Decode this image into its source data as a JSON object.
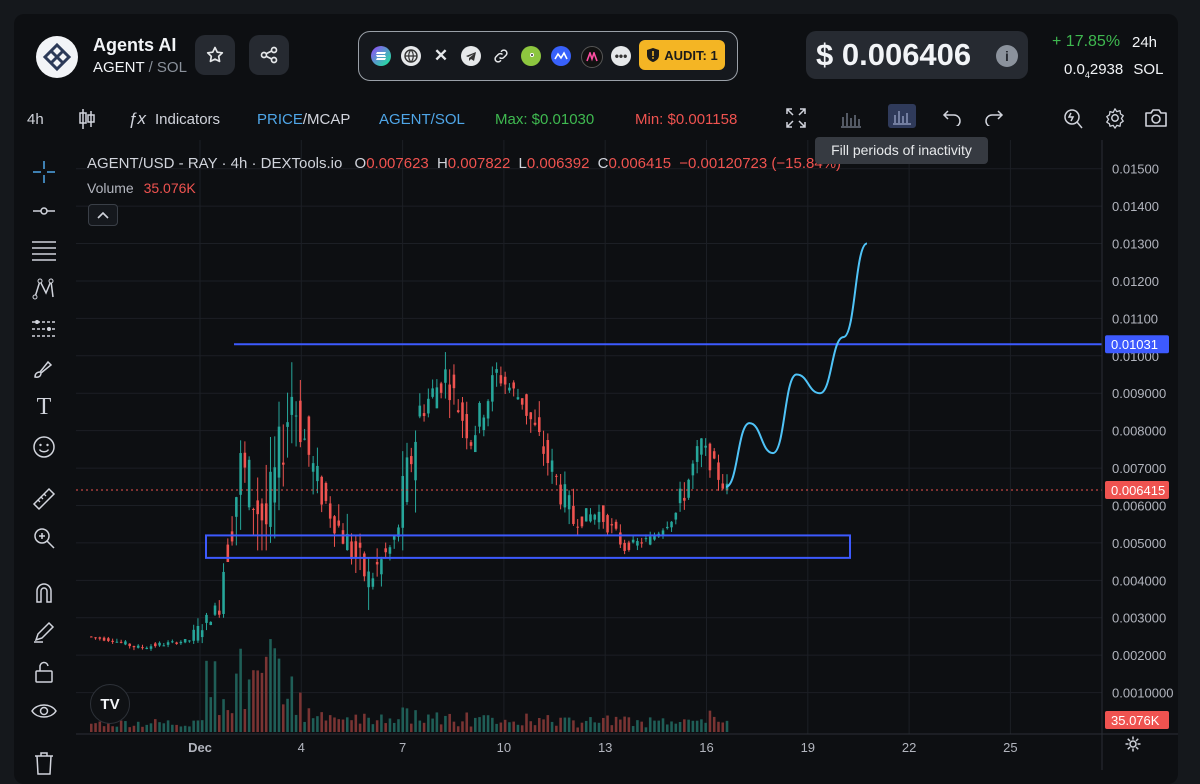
{
  "token": {
    "name": "Agents AI",
    "symbol": "AGENT",
    "separator": "/",
    "quote": "SOL"
  },
  "social": {
    "icons": [
      "solana-icon",
      "website-icon",
      "x-icon",
      "telegram-icon",
      "link-icon",
      "coingecko-icon",
      "coinmarketcap-icon",
      "dextools-icon",
      "more-icon"
    ],
    "audit_label": "AUDIT: 1"
  },
  "price": {
    "usd": "$ 0.006406",
    "change": "+ 17.85%",
    "period": "24h",
    "sol_prefix": "0.0",
    "sol_sub": "4",
    "sol_digits": "2938",
    "sol_unit": "SOL"
  },
  "toolbar": {
    "interval": "4h",
    "indicators": "Indicators",
    "price_label": "PRICE",
    "mcap_label": "MCAP",
    "pair_label": "AGENT/SOL",
    "max": "Max: $0.01030",
    "min": "Min: $0.001158",
    "tooltip": "Fill periods of inactivity"
  },
  "legend": {
    "title": "AGENT/USD - RAY · 4h · DEXTools.io",
    "o_label": "O",
    "o": "0.007623",
    "h_label": "H",
    "h": "0.007822",
    "l_label": "L",
    "l": "0.006392",
    "c_label": "C",
    "c": "0.006415",
    "change": "−0.00120723 (−15.84%)",
    "volume_label": "Volume",
    "volume": "35.076K"
  },
  "tv_logo": "TV",
  "colors": {
    "up": "#26a69a",
    "down": "#ef5350",
    "drawing": "#3d5afe",
    "projection": "#4fc3f7",
    "positive": "#3fb950",
    "audit": "#f4b524"
  },
  "chart_data": {
    "type": "candlestick",
    "title": "AGENT/USD - RAY · 4h · DEXTools.io",
    "y_ticks": [
      "0.01500",
      "0.01400",
      "0.01300",
      "0.01200",
      "0.01100",
      "0.01000",
      "0.009000",
      "0.008000",
      "0.007000",
      "0.006000",
      "0.005000",
      "0.004000",
      "0.003000",
      "0.002000",
      "0.0010000"
    ],
    "x_ticks": [
      "Dec",
      "4",
      "7",
      "10",
      "13",
      "16",
      "19",
      "22",
      "25"
    ],
    "ylim": [
      0,
      0.0155
    ],
    "resistance_level": 0.01031,
    "resistance_label": "0.01031",
    "support_zone": [
      0.0046,
      0.0052
    ],
    "last_price": 0.006415,
    "last_price_label": "0.006415",
    "volume_label": "35.076K",
    "series_ohlc_waypoints": [
      [
        0.0025,
        0.0026,
        0.0023,
        0.0024
      ],
      [
        0.0024,
        0.0025,
        0.0021,
        0.0022
      ],
      [
        0.0022,
        0.0024,
        0.002,
        0.0023
      ],
      [
        0.0023,
        0.0025,
        0.0022,
        0.0024
      ],
      [
        0.0024,
        0.0034,
        0.0023,
        0.0032
      ],
      [
        0.0032,
        0.0078,
        0.003,
        0.007
      ],
      [
        0.007,
        0.0102,
        0.0048,
        0.0055
      ],
      [
        0.0055,
        0.01,
        0.005,
        0.009
      ],
      [
        0.009,
        0.0099,
        0.006,
        0.0065
      ],
      [
        0.0065,
        0.0068,
        0.0045,
        0.0052
      ],
      [
        0.0052,
        0.0058,
        0.0028,
        0.004
      ],
      [
        0.004,
        0.0052,
        0.003,
        0.005
      ],
      [
        0.005,
        0.009,
        0.0048,
        0.0085
      ],
      [
        0.0085,
        0.0101,
        0.0078,
        0.0095
      ],
      [
        0.0095,
        0.0098,
        0.0075,
        0.0078
      ],
      [
        0.0078,
        0.01,
        0.0076,
        0.0095
      ],
      [
        0.0095,
        0.0099,
        0.0085,
        0.0088
      ],
      [
        0.0088,
        0.009,
        0.0068,
        0.0072
      ],
      [
        0.0072,
        0.0076,
        0.005,
        0.0056
      ],
      [
        0.0056,
        0.0065,
        0.0052,
        0.0058
      ],
      [
        0.0058,
        0.006,
        0.0047,
        0.0049
      ],
      [
        0.0049,
        0.0053,
        0.0046,
        0.0051
      ],
      [
        0.0051,
        0.006,
        0.005,
        0.0058
      ],
      [
        0.0058,
        0.0078,
        0.0056,
        0.0076
      ],
      [
        0.0076,
        0.0078,
        0.0063,
        0.0064
      ]
    ],
    "projection_path": [
      [
        0.0065,
        0
      ],
      [
        0.0082,
        1
      ],
      [
        0.0074,
        2
      ],
      [
        0.0095,
        3
      ],
      [
        0.009,
        4
      ],
      [
        0.0105,
        5
      ],
      [
        0.013,
        6
      ]
    ],
    "volume_bars_scale": "relative"
  }
}
